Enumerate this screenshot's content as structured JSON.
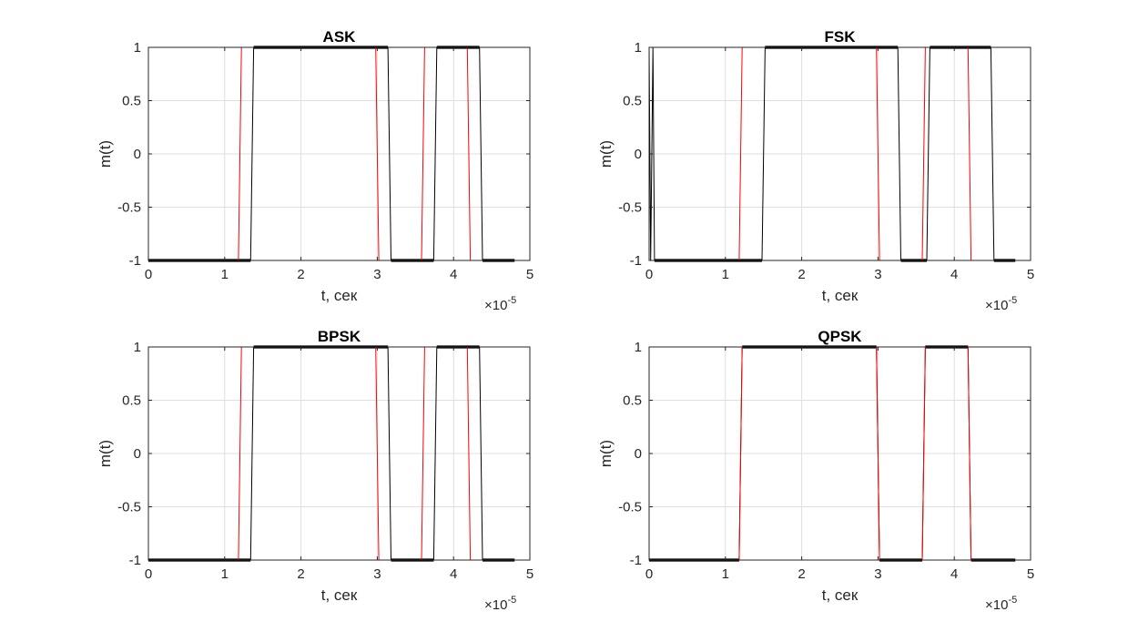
{
  "chart_data": [
    {
      "type": "line",
      "title": "ASK",
      "xlabel": "t, сек",
      "ylabel": "m(t)",
      "xlim": [
        0,
        5
      ],
      "ylim": [
        -1,
        1
      ],
      "x_multiplier": "×10",
      "x_exponent": "-5",
      "xticks": [
        "0",
        "1",
        "2",
        "3",
        "4",
        "5"
      ],
      "yticks": [
        "-1",
        "-0.5",
        "0",
        "0.5",
        "1"
      ],
      "grid": true,
      "series": [
        {
          "color": "#000000",
          "points": [
            [
              0,
              -1
            ],
            [
              1.34,
              -1
            ],
            [
              1.38,
              1
            ],
            [
              3.14,
              1
            ],
            [
              3.18,
              -1
            ],
            [
              3.74,
              -1
            ],
            [
              3.78,
              1
            ],
            [
              4.34,
              1
            ],
            [
              4.38,
              -1
            ],
            [
              4.8,
              -1
            ]
          ]
        },
        {
          "color": "#ff0000",
          "points": [
            [
              0,
              -1
            ],
            [
              1.18,
              -1
            ],
            [
              1.22,
              1
            ],
            [
              2.98,
              1
            ],
            [
              3.02,
              -1
            ],
            [
              3.58,
              -1
            ],
            [
              3.62,
              1
            ],
            [
              4.18,
              1
            ],
            [
              4.22,
              -1
            ],
            [
              4.8,
              -1
            ]
          ]
        }
      ]
    },
    {
      "type": "line",
      "title": "FSK",
      "xlabel": "t, сек",
      "ylabel": "m(t)",
      "xlim": [
        0,
        5
      ],
      "ylim": [
        -1,
        1
      ],
      "x_multiplier": "×10",
      "x_exponent": "-5",
      "xticks": [
        "0",
        "1",
        "2",
        "3",
        "4",
        "5"
      ],
      "yticks": [
        "-1",
        "-0.5",
        "0",
        "0.5",
        "1"
      ],
      "grid": true,
      "series": [
        {
          "color": "#000000",
          "points": [
            [
              0,
              1
            ],
            [
              0.02,
              -1
            ],
            [
              0.05,
              1
            ],
            [
              0.07,
              -1
            ],
            [
              1.48,
              -1
            ],
            [
              1.52,
              1
            ],
            [
              3.26,
              1
            ],
            [
              3.3,
              -1
            ],
            [
              3.64,
              -1
            ],
            [
              3.68,
              1
            ],
            [
              4.48,
              1
            ],
            [
              4.52,
              -1
            ],
            [
              4.8,
              -1
            ]
          ]
        },
        {
          "color": "#ff0000",
          "points": [
            [
              0,
              -1
            ],
            [
              1.18,
              -1
            ],
            [
              1.22,
              1
            ],
            [
              2.98,
              1
            ],
            [
              3.02,
              -1
            ],
            [
              3.58,
              -1
            ],
            [
              3.62,
              1
            ],
            [
              4.18,
              1
            ],
            [
              4.22,
              -1
            ],
            [
              4.8,
              -1
            ]
          ]
        }
      ]
    },
    {
      "type": "line",
      "title": "BPSK",
      "xlabel": "t, сек",
      "ylabel": "m(t)",
      "xlim": [
        0,
        5
      ],
      "ylim": [
        -1,
        1
      ],
      "x_multiplier": "×10",
      "x_exponent": "-5",
      "xticks": [
        "0",
        "1",
        "2",
        "3",
        "4",
        "5"
      ],
      "yticks": [
        "-1",
        "-0.5",
        "0",
        "0.5",
        "1"
      ],
      "grid": true,
      "series": [
        {
          "color": "#000000",
          "points": [
            [
              0,
              -1
            ],
            [
              1.34,
              -1
            ],
            [
              1.38,
              1
            ],
            [
              3.14,
              1
            ],
            [
              3.18,
              -1
            ],
            [
              3.74,
              -1
            ],
            [
              3.78,
              1
            ],
            [
              4.34,
              1
            ],
            [
              4.38,
              -1
            ],
            [
              4.8,
              -1
            ]
          ]
        },
        {
          "color": "#ff0000",
          "points": [
            [
              0,
              -1
            ],
            [
              1.18,
              -1
            ],
            [
              1.22,
              1
            ],
            [
              2.98,
              1
            ],
            [
              3.02,
              -1
            ],
            [
              3.58,
              -1
            ],
            [
              3.62,
              1
            ],
            [
              4.18,
              1
            ],
            [
              4.22,
              -1
            ],
            [
              4.8,
              -1
            ]
          ]
        }
      ]
    },
    {
      "type": "line",
      "title": "QPSK",
      "xlabel": "t, сек",
      "ylabel": "m(t)",
      "xlim": [
        0,
        5
      ],
      "ylim": [
        -1,
        1
      ],
      "x_multiplier": "×10",
      "x_exponent": "-5",
      "xticks": [
        "0",
        "1",
        "2",
        "3",
        "4",
        "5"
      ],
      "yticks": [
        "-1",
        "-0.5",
        "0",
        "0.5",
        "1"
      ],
      "grid": true,
      "series": [
        {
          "color": "#000000",
          "points": [
            [
              0,
              -1
            ],
            [
              1.18,
              -1
            ],
            [
              1.22,
              1
            ],
            [
              2.98,
              1
            ],
            [
              3.02,
              -1
            ],
            [
              3.58,
              -1
            ],
            [
              3.62,
              1
            ],
            [
              4.18,
              1
            ],
            [
              4.22,
              -1
            ],
            [
              4.8,
              -1
            ]
          ]
        },
        {
          "color": "#ff0000",
          "points": [
            [
              0,
              -1
            ],
            [
              1.18,
              -1
            ],
            [
              1.22,
              1
            ],
            [
              2.98,
              1
            ],
            [
              3.02,
              -1
            ],
            [
              3.58,
              -1
            ],
            [
              3.62,
              1
            ],
            [
              4.18,
              1
            ],
            [
              4.22,
              -1
            ],
            [
              4.8,
              -1
            ]
          ]
        }
      ]
    }
  ]
}
